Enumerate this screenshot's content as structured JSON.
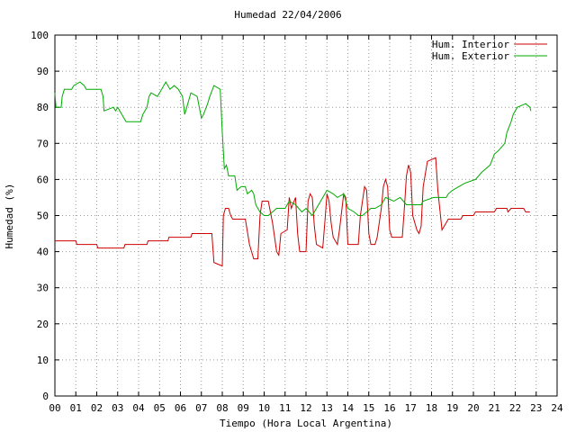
{
  "chart_data": {
    "type": "line",
    "title": "Humedad 22/04/2006",
    "xlabel": "Tiempo (Hora Local Argentina)",
    "ylabel": "Humedad (%)",
    "xlim": [
      0,
      24
    ],
    "ylim": [
      0,
      100
    ],
    "xticks": [
      "00",
      "01",
      "02",
      "03",
      "04",
      "05",
      "06",
      "07",
      "08",
      "09",
      "10",
      "11",
      "12",
      "13",
      "14",
      "15",
      "16",
      "17",
      "18",
      "19",
      "20",
      "21",
      "22",
      "23",
      "24"
    ],
    "yticks": [
      0,
      10,
      20,
      30,
      40,
      50,
      60,
      70,
      80,
      90,
      100
    ],
    "grid": true,
    "legend_position": "top-right",
    "series": [
      {
        "name": "Hum. Interior",
        "color": "#cc0000",
        "points": [
          [
            0,
            43
          ],
          [
            1,
            43
          ],
          [
            1.05,
            42
          ],
          [
            2,
            42
          ],
          [
            2.05,
            41
          ],
          [
            3.3,
            41
          ],
          [
            3.35,
            42
          ],
          [
            4.4,
            42
          ],
          [
            4.45,
            43
          ],
          [
            5.4,
            43
          ],
          [
            5.45,
            44
          ],
          [
            6.5,
            44
          ],
          [
            6.55,
            45
          ],
          [
            7.5,
            45
          ],
          [
            7.6,
            37
          ],
          [
            8.0,
            36
          ],
          [
            8.05,
            50
          ],
          [
            8.15,
            52
          ],
          [
            8.3,
            52
          ],
          [
            8.4,
            50
          ],
          [
            8.5,
            49
          ],
          [
            9.1,
            49
          ],
          [
            9.3,
            42
          ],
          [
            9.5,
            38
          ],
          [
            9.7,
            38
          ],
          [
            9.8,
            50
          ],
          [
            9.9,
            54
          ],
          [
            10.2,
            54
          ],
          [
            10.4,
            48
          ],
          [
            10.6,
            40
          ],
          [
            10.7,
            39
          ],
          [
            10.8,
            45
          ],
          [
            11.1,
            46
          ],
          [
            11.2,
            55
          ],
          [
            11.3,
            52
          ],
          [
            11.5,
            55
          ],
          [
            11.6,
            45
          ],
          [
            11.7,
            40
          ],
          [
            12.0,
            40
          ],
          [
            12.1,
            54
          ],
          [
            12.2,
            56
          ],
          [
            12.3,
            55
          ],
          [
            12.4,
            47
          ],
          [
            12.5,
            42
          ],
          [
            12.8,
            41
          ],
          [
            12.9,
            48
          ],
          [
            13.0,
            56
          ],
          [
            13.1,
            54
          ],
          [
            13.2,
            48
          ],
          [
            13.3,
            44
          ],
          [
            13.5,
            42
          ],
          [
            13.6,
            46
          ],
          [
            13.8,
            56
          ],
          [
            13.9,
            55
          ],
          [
            14.0,
            42
          ],
          [
            14.5,
            42
          ],
          [
            14.6,
            50
          ],
          [
            14.8,
            58
          ],
          [
            14.9,
            57
          ],
          [
            15.0,
            45
          ],
          [
            15.1,
            42
          ],
          [
            15.3,
            42
          ],
          [
            15.4,
            44
          ],
          [
            15.6,
            52
          ],
          [
            15.7,
            58
          ],
          [
            15.8,
            60
          ],
          [
            15.9,
            58
          ],
          [
            16.0,
            46
          ],
          [
            16.1,
            44
          ],
          [
            16.6,
            44
          ],
          [
            16.7,
            52
          ],
          [
            16.8,
            61
          ],
          [
            16.9,
            64
          ],
          [
            17.0,
            62
          ],
          [
            17.1,
            50
          ],
          [
            17.3,
            46
          ],
          [
            17.4,
            45
          ],
          [
            17.5,
            47
          ],
          [
            17.6,
            58
          ],
          [
            17.8,
            65
          ],
          [
            18.2,
            66
          ],
          [
            18.3,
            57
          ],
          [
            18.5,
            46
          ],
          [
            18.7,
            48
          ],
          [
            18.8,
            49
          ],
          [
            19.4,
            49
          ],
          [
            19.5,
            50
          ],
          [
            20.0,
            50
          ],
          [
            20.1,
            51
          ],
          [
            21.0,
            51
          ],
          [
            21.1,
            52
          ],
          [
            21.6,
            52
          ],
          [
            21.65,
            51
          ],
          [
            21.8,
            52
          ],
          [
            22.4,
            52
          ],
          [
            22.5,
            51
          ],
          [
            22.7,
            51
          ]
        ]
      },
      {
        "name": "Hum. Exterior",
        "color": "#00aa00",
        "points": [
          [
            0,
            84
          ],
          [
            0.05,
            80
          ],
          [
            0.3,
            80
          ],
          [
            0.35,
            83
          ],
          [
            0.45,
            85
          ],
          [
            0.8,
            85
          ],
          [
            0.9,
            86
          ],
          [
            1.2,
            87
          ],
          [
            1.4,
            86
          ],
          [
            1.5,
            85
          ],
          [
            2.2,
            85
          ],
          [
            2.3,
            83
          ],
          [
            2.35,
            79
          ],
          [
            2.8,
            80
          ],
          [
            2.9,
            79
          ],
          [
            3.0,
            80
          ],
          [
            3.3,
            77
          ],
          [
            3.4,
            76
          ],
          [
            4.0,
            76
          ],
          [
            4.1,
            76
          ],
          [
            4.2,
            78
          ],
          [
            4.4,
            80
          ],
          [
            4.5,
            83
          ],
          [
            4.6,
            84
          ],
          [
            4.9,
            83
          ],
          [
            5.1,
            85
          ],
          [
            5.3,
            87
          ],
          [
            5.5,
            85
          ],
          [
            5.7,
            86
          ],
          [
            5.9,
            85
          ],
          [
            6.1,
            83
          ],
          [
            6.2,
            78
          ],
          [
            6.3,
            80
          ],
          [
            6.5,
            84
          ],
          [
            6.8,
            83
          ],
          [
            7.0,
            77
          ],
          [
            7.1,
            78
          ],
          [
            7.3,
            81
          ],
          [
            7.4,
            83
          ],
          [
            7.6,
            86
          ],
          [
            7.9,
            85
          ],
          [
            8.0,
            73
          ],
          [
            8.1,
            63
          ],
          [
            8.2,
            64
          ],
          [
            8.3,
            61
          ],
          [
            8.6,
            61
          ],
          [
            8.7,
            57
          ],
          [
            8.9,
            58
          ],
          [
            9.1,
            58
          ],
          [
            9.2,
            56
          ],
          [
            9.4,
            57
          ],
          [
            9.5,
            56
          ],
          [
            9.6,
            53
          ],
          [
            9.7,
            52
          ],
          [
            9.8,
            51
          ],
          [
            10.0,
            50
          ],
          [
            10.2,
            50
          ],
          [
            10.4,
            51
          ],
          [
            10.6,
            52
          ],
          [
            11.0,
            52
          ],
          [
            11.2,
            54
          ],
          [
            11.5,
            53
          ],
          [
            11.8,
            51
          ],
          [
            12.0,
            52
          ],
          [
            12.3,
            50
          ],
          [
            12.5,
            52
          ],
          [
            12.7,
            54
          ],
          [
            13.0,
            57
          ],
          [
            13.3,
            56
          ],
          [
            13.5,
            55
          ],
          [
            13.8,
            56
          ],
          [
            14.0,
            52
          ],
          [
            14.3,
            51
          ],
          [
            14.5,
            50
          ],
          [
            14.7,
            50
          ],
          [
            14.9,
            51
          ],
          [
            15.1,
            52
          ],
          [
            15.3,
            52
          ],
          [
            15.6,
            53
          ],
          [
            15.8,
            55
          ],
          [
            16.2,
            54
          ],
          [
            16.5,
            55
          ],
          [
            16.8,
            53
          ],
          [
            17.5,
            53
          ],
          [
            17.6,
            54
          ],
          [
            18.1,
            55
          ],
          [
            18.7,
            55
          ],
          [
            18.8,
            56
          ],
          [
            19.0,
            57
          ],
          [
            19.3,
            58
          ],
          [
            19.6,
            59
          ],
          [
            20.1,
            60
          ],
          [
            20.4,
            62
          ],
          [
            20.8,
            64
          ],
          [
            21.0,
            67
          ],
          [
            21.2,
            68
          ],
          [
            21.5,
            70
          ],
          [
            21.6,
            73
          ],
          [
            21.8,
            76
          ],
          [
            21.9,
            78
          ],
          [
            22.1,
            80
          ],
          [
            22.5,
            81
          ],
          [
            22.7,
            80
          ],
          [
            22.75,
            79
          ]
        ]
      }
    ]
  }
}
